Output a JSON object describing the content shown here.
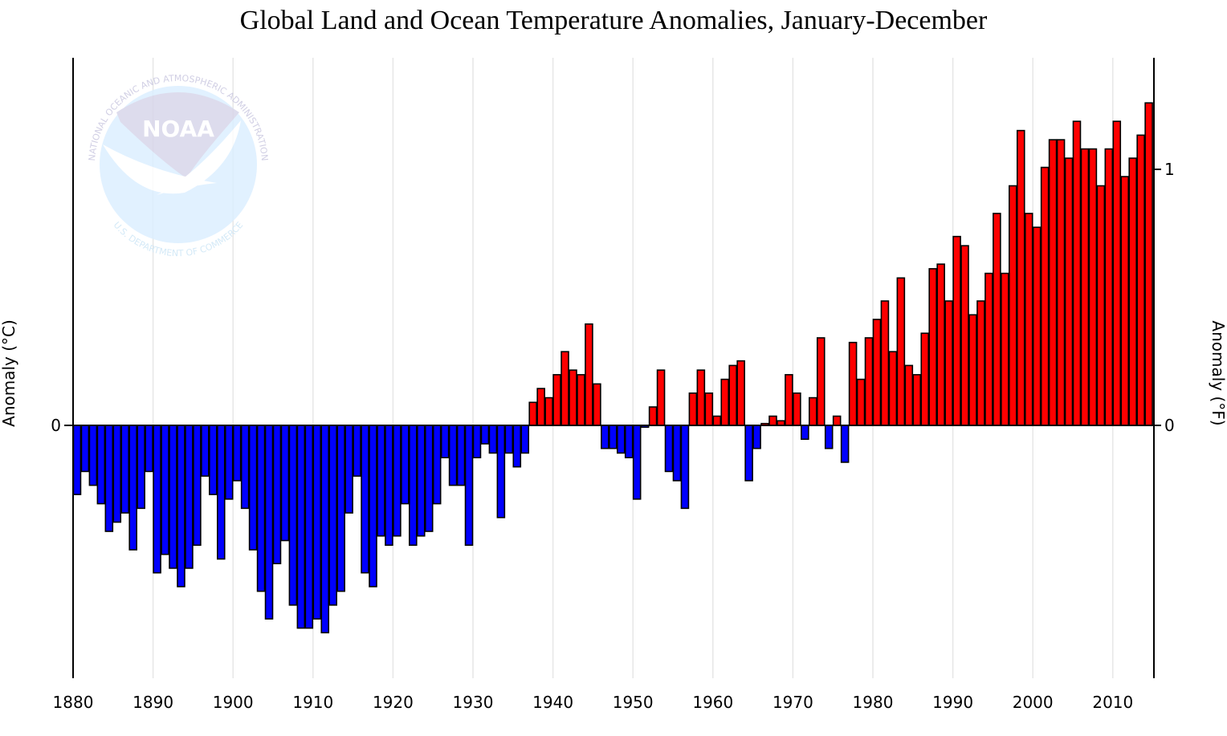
{
  "chart_data": {
    "type": "bar",
    "title": "Global Land and Ocean Temperature Anomalies, January-December",
    "ylabel": "Anomaly (°C)",
    "ylabel_right": "Anomaly (°F)",
    "xlim": [
      1880,
      2015
    ],
    "ylim": [
      -0.55,
      0.8
    ],
    "xticks": [
      "1880",
      "1890",
      "1900",
      "1910",
      "1920",
      "1930",
      "1940",
      "1950",
      "1960",
      "1970",
      "1980",
      "1990",
      "2000",
      "2010"
    ],
    "yticks_left": [
      {
        "value": 0,
        "label": "0"
      }
    ],
    "yticks_right_f": [
      {
        "value": 0,
        "label": "0"
      },
      {
        "value": 1,
        "label": "1"
      }
    ],
    "grid": "vertical at decades",
    "colors": {
      "positive": "#ff0000",
      "negative": "#0000ff",
      "outline": "#000000",
      "grid": "#e6e6e6"
    },
    "years_start": 1880,
    "values": [
      -0.15,
      -0.1,
      -0.13,
      -0.17,
      -0.23,
      -0.21,
      -0.19,
      -0.27,
      -0.18,
      -0.1,
      -0.32,
      -0.28,
      -0.31,
      -0.35,
      -0.31,
      -0.26,
      -0.11,
      -0.15,
      -0.29,
      -0.16,
      -0.12,
      -0.18,
      -0.27,
      -0.36,
      -0.42,
      -0.3,
      -0.25,
      -0.39,
      -0.44,
      -0.44,
      -0.42,
      -0.45,
      -0.39,
      -0.36,
      -0.19,
      -0.11,
      -0.32,
      -0.35,
      -0.24,
      -0.26,
      -0.24,
      -0.17,
      -0.26,
      -0.24,
      -0.23,
      -0.17,
      -0.07,
      -0.13,
      -0.13,
      -0.26,
      -0.07,
      -0.04,
      -0.06,
      -0.2,
      -0.06,
      -0.09,
      -0.06,
      0.05,
      0.08,
      0.06,
      0.11,
      0.16,
      0.12,
      0.11,
      0.22,
      0.09,
      -0.05,
      -0.05,
      -0.06,
      -0.07,
      -0.16,
      -0.004,
      0.04,
      0.12,
      -0.1,
      -0.12,
      -0.18,
      0.07,
      0.12,
      0.07,
      0.02,
      0.1,
      0.13,
      0.14,
      -0.12,
      -0.05,
      0.004,
      0.02,
      0.01,
      0.11,
      0.07,
      -0.03,
      0.06,
      0.19,
      -0.05,
      0.02,
      -0.08,
      0.18,
      0.1,
      0.19,
      0.23,
      0.27,
      0.16,
      0.32,
      0.13,
      0.11,
      0.2,
      0.34,
      0.35,
      0.27,
      0.41,
      0.39,
      0.24,
      0.27,
      0.33,
      0.46,
      0.33,
      0.52,
      0.64,
      0.46,
      0.43,
      0.56,
      0.62,
      0.62,
      0.58,
      0.66,
      0.6,
      0.6,
      0.52,
      0.6,
      0.66,
      0.54,
      0.58,
      0.63,
      0.7
    ]
  },
  "logo": {
    "name": "NOAA",
    "ring_top": "NATIONAL OCEANIC AND ATMOSPHERIC ADMINISTRATION",
    "ring_bottom": "U.S. DEPARTMENT OF COMMERCE"
  }
}
